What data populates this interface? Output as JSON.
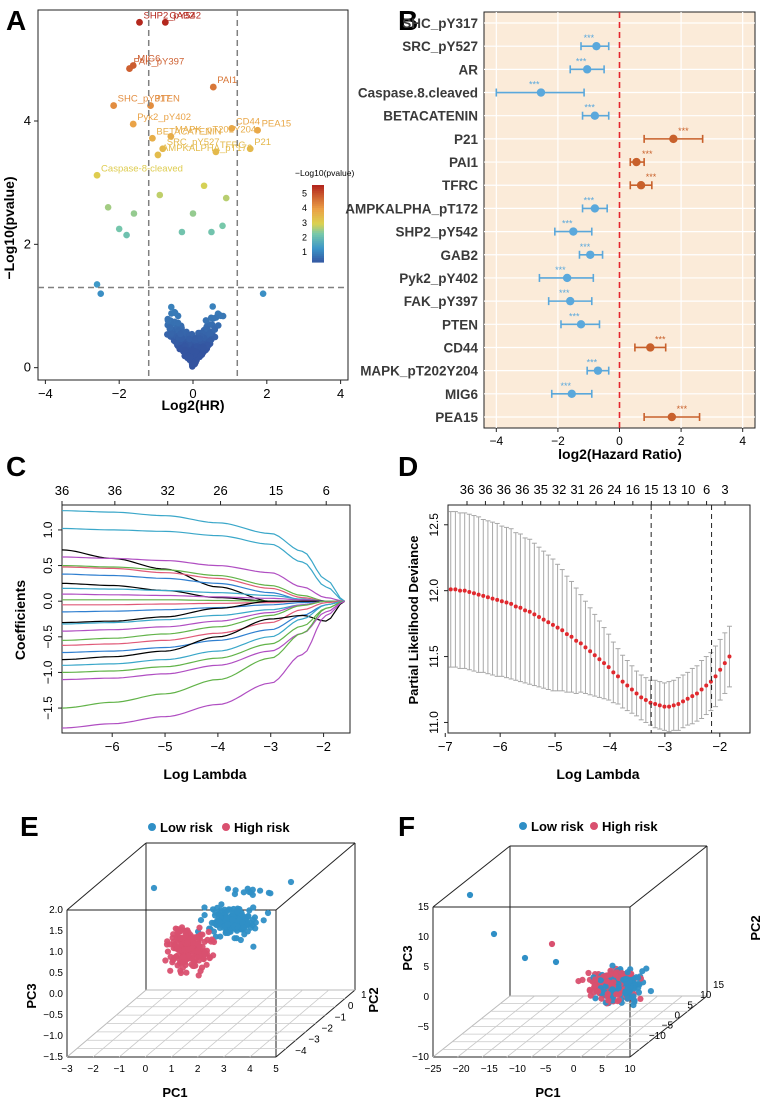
{
  "colors": {
    "forest_bg": "#fbebd9",
    "protective": "#5aa8dc",
    "risk": "#c8602b",
    "ref_line": "#e3262d",
    "low_risk": "#2f8fc6",
    "high_risk": "#d9506f",
    "lambda_point": "#e0292e",
    "err_bar": "#a8a8a8"
  },
  "chart_data": [
    {
      "panel": "A",
      "type": "scatter",
      "xlabel": "Log2(HR)",
      "ylabel": "−Log10(pvalue)",
      "xlim": [
        -4.2,
        4.2
      ],
      "ylim": [
        -0.2,
        5.8
      ],
      "xticks": [
        "−4",
        "−2",
        "0",
        "2",
        "4"
      ],
      "yticks": [
        "0",
        "2",
        "4"
      ],
      "hr_cutoffs": [
        -1.2,
        1.2
      ],
      "p_cutoff": 1.3,
      "colorbar": {
        "title": "−Log10(pvalue)",
        "ticks": [
          "5",
          "4",
          "3",
          "2",
          "1"
        ],
        "range": [
          0.3,
          5.6
        ]
      },
      "labeled": [
        {
          "label": "SHP2_pY542",
          "x": -1.45,
          "y": 5.6
        },
        {
          "label": "GAB2",
          "x": -0.75,
          "y": 5.6
        },
        {
          "label": "FAK_pY397",
          "x": -1.72,
          "y": 4.85
        },
        {
          "label": "MIG6",
          "x": -1.62,
          "y": 4.9
        },
        {
          "label": "PAI1",
          "x": 0.55,
          "y": 4.55
        },
        {
          "label": "SHC_pY317",
          "x": -2.15,
          "y": 4.25
        },
        {
          "label": "PTEN",
          "x": -1.15,
          "y": 4.25
        },
        {
          "label": "Pyk2_pY402",
          "x": -1.62,
          "y": 3.95
        },
        {
          "label": "MAPK_pT202Y204",
          "x": -0.6,
          "y": 3.75
        },
        {
          "label": "CD44",
          "x": 1.05,
          "y": 3.88
        },
        {
          "label": "PEA15",
          "x": 1.75,
          "y": 3.85
        },
        {
          "label": "BETACATENIN",
          "x": -1.1,
          "y": 3.72
        },
        {
          "label": "P21",
          "x": 1.55,
          "y": 3.55
        },
        {
          "label": "TFRC",
          "x": 0.62,
          "y": 3.5
        },
        {
          "label": "SRC_pY527",
          "x": -0.82,
          "y": 3.55
        },
        {
          "label": "AMPKALPHA_pT172",
          "x": -0.95,
          "y": 3.45
        },
        {
          "label": "Caspase-8-cleaved",
          "x": -2.6,
          "y": 3.12
        }
      ]
    },
    {
      "panel": "B",
      "type": "forest",
      "xlabel": "log2(Hazard Ratio)",
      "xlim": [
        -4.4,
        4.4
      ],
      "xticks": [
        "−4",
        "−2",
        "0",
        "2",
        "4"
      ],
      "rows": [
        {
          "name": "SHC_pY317",
          "est": null,
          "lo": null,
          "hi": null,
          "sig": ""
        },
        {
          "name": "SRC_pY527",
          "est": -0.75,
          "lo": -1.25,
          "hi": -0.35,
          "sig": "***"
        },
        {
          "name": "AR",
          "est": -1.05,
          "lo": -1.6,
          "hi": -0.5,
          "sig": "***"
        },
        {
          "name": "Caspase.8.cleaved",
          "est": -2.55,
          "lo": -4.0,
          "hi": -1.15,
          "sig": "***"
        },
        {
          "name": "BETACATENIN",
          "est": -0.8,
          "lo": -1.2,
          "hi": -0.35,
          "sig": "***"
        },
        {
          "name": "P21",
          "est": 1.75,
          "lo": 0.8,
          "hi": 2.7,
          "sig": "***"
        },
        {
          "name": "PAI1",
          "est": 0.55,
          "lo": 0.35,
          "hi": 0.8,
          "sig": "***"
        },
        {
          "name": "TFRC",
          "est": 0.7,
          "lo": 0.35,
          "hi": 1.05,
          "sig": "***"
        },
        {
          "name": "AMPKALPHA_pT172",
          "est": -0.8,
          "lo": -1.2,
          "hi": -0.4,
          "sig": "***"
        },
        {
          "name": "SHP2_pY542",
          "est": -1.5,
          "lo": -2.1,
          "hi": -0.9,
          "sig": "***"
        },
        {
          "name": "GAB2",
          "est": -0.95,
          "lo": -1.3,
          "hi": -0.55,
          "sig": "***"
        },
        {
          "name": "Pyk2_pY402",
          "est": -1.7,
          "lo": -2.6,
          "hi": -0.85,
          "sig": "***"
        },
        {
          "name": "FAK_pY397",
          "est": -1.6,
          "lo": -2.3,
          "hi": -0.9,
          "sig": "***"
        },
        {
          "name": "PTEN",
          "est": -1.25,
          "lo": -1.9,
          "hi": -0.65,
          "sig": "***"
        },
        {
          "name": "CD44",
          "est": 1.0,
          "lo": 0.5,
          "hi": 1.5,
          "sig": "***"
        },
        {
          "name": "MAPK_pT202Y204",
          "est": -0.7,
          "lo": -1.05,
          "hi": -0.35,
          "sig": "***"
        },
        {
          "name": "MIG6",
          "est": -1.55,
          "lo": -2.2,
          "hi": -0.9,
          "sig": "***"
        },
        {
          "name": "PEA15",
          "est": 1.7,
          "lo": 0.8,
          "hi": 2.6,
          "sig": "***"
        }
      ]
    },
    {
      "panel": "C",
      "type": "line",
      "xlabel": "Log Lambda",
      "ylabel": "Coefficients",
      "xlim": [
        -6.95,
        -1.5
      ],
      "ylim": [
        -1.85,
        1.35
      ],
      "xticks": [
        "−7",
        "−6",
        "−5",
        "−4",
        "−3",
        "−2"
      ],
      "yticks": [
        "−1.5",
        "−1.0",
        "−0.5",
        "0.0",
        "0.5",
        "1.0"
      ],
      "top_axis": [
        {
          "at": -6.95,
          "label": "36"
        },
        {
          "at": -5.95,
          "label": "36"
        },
        {
          "at": -4.95,
          "label": "32"
        },
        {
          "at": -3.95,
          "label": "26"
        },
        {
          "at": -2.9,
          "label": "15"
        },
        {
          "at": -1.95,
          "label": "6"
        }
      ],
      "series": [
        {
          "color": "#3aa7c9",
          "values": [
            1.27,
            1.25,
            1.2,
            1.1,
            0.95,
            0.7,
            0.3,
            0.0
          ]
        },
        {
          "color": "#3aa7c9",
          "values": [
            1.02,
            1.0,
            0.98,
            0.92,
            0.8,
            0.55,
            0.2,
            0.0
          ]
        },
        {
          "color": "#000000",
          "values": [
            0.72,
            0.6,
            0.45,
            0.2,
            0.0,
            0.0,
            0.0,
            0.0
          ]
        },
        {
          "color": "#b04ec2",
          "values": [
            0.62,
            0.6,
            0.57,
            0.5,
            0.4,
            0.2,
            0.05,
            0.0
          ]
        },
        {
          "color": "#62b349",
          "values": [
            0.5,
            0.48,
            0.44,
            0.36,
            0.22,
            0.08,
            0.0,
            0.0
          ]
        },
        {
          "color": "#e05a78",
          "values": [
            0.48,
            0.46,
            0.4,
            0.32,
            0.18,
            0.05,
            0.0,
            0.0
          ]
        },
        {
          "color": "#2f7fd0",
          "values": [
            0.38,
            0.36,
            0.32,
            0.25,
            0.12,
            0.02,
            0.0,
            0.0
          ]
        },
        {
          "color": "#000000",
          "values": [
            0.25,
            0.22,
            0.15,
            0.05,
            0.0,
            0.0,
            0.0,
            0.0
          ]
        },
        {
          "color": "#3aa7c9",
          "values": [
            0.18,
            0.17,
            0.15,
            0.12,
            0.08,
            0.03,
            0.0,
            0.0
          ]
        },
        {
          "color": "#b04ec2",
          "values": [
            0.1,
            0.09,
            0.08,
            0.06,
            0.04,
            0.02,
            0.0,
            0.0
          ]
        },
        {
          "color": "#62b349",
          "values": [
            0.02,
            0.02,
            0.02,
            0.01,
            0.0,
            0.0,
            0.0,
            0.0
          ]
        },
        {
          "color": "#e05a78",
          "values": [
            -0.05,
            -0.05,
            -0.04,
            -0.03,
            -0.02,
            0.0,
            0.0,
            0.0
          ]
        },
        {
          "color": "#2f7fd0",
          "values": [
            -0.15,
            -0.14,
            -0.12,
            -0.09,
            -0.05,
            -0.02,
            0.0,
            0.0
          ]
        },
        {
          "color": "#000000",
          "values": [
            -0.3,
            -0.28,
            -0.22,
            -0.1,
            0.0,
            0.0,
            0.0,
            0.0
          ]
        },
        {
          "color": "#3aa7c9",
          "values": [
            -0.32,
            -0.3,
            -0.26,
            -0.2,
            -0.12,
            -0.05,
            0.0,
            0.0
          ]
        },
        {
          "color": "#b04ec2",
          "values": [
            -0.42,
            -0.4,
            -0.36,
            -0.28,
            -0.16,
            -0.05,
            0.0,
            0.0
          ]
        },
        {
          "color": "#62b349",
          "values": [
            -0.55,
            -0.52,
            -0.46,
            -0.36,
            -0.2,
            -0.06,
            0.0,
            0.0
          ]
        },
        {
          "color": "#e05a78",
          "values": [
            -0.62,
            -0.6,
            -0.55,
            -0.45,
            -0.3,
            -0.12,
            -0.02,
            0.0
          ]
        },
        {
          "color": "#2f7fd0",
          "values": [
            -0.72,
            -0.7,
            -0.65,
            -0.55,
            -0.4,
            -0.2,
            -0.05,
            0.0
          ]
        },
        {
          "color": "#000000",
          "values": [
            -0.82,
            -0.78,
            -0.7,
            -0.5,
            -0.25,
            -0.2,
            -0.28,
            0.0
          ]
        },
        {
          "color": "#3aa7c9",
          "values": [
            -0.9,
            -0.88,
            -0.82,
            -0.7,
            -0.5,
            -0.25,
            -0.05,
            0.0
          ]
        },
        {
          "color": "#62b349",
          "values": [
            -1.0,
            -0.98,
            -0.92,
            -0.8,
            -0.6,
            -0.35,
            -0.1,
            0.0
          ]
        },
        {
          "color": "#b04ec2",
          "values": [
            -1.1,
            -1.08,
            -1.02,
            -0.9,
            -0.7,
            -0.45,
            -0.15,
            0.0
          ]
        },
        {
          "color": "#62b349",
          "values": [
            -1.5,
            -1.42,
            -1.3,
            -1.1,
            -0.8,
            -0.45,
            -0.1,
            0.0
          ]
        },
        {
          "color": "#b04ec2",
          "values": [
            -1.78,
            -1.72,
            -1.62,
            -1.45,
            -1.15,
            -0.75,
            -0.2,
            0.0
          ]
        }
      ]
    },
    {
      "panel": "D",
      "type": "scatter",
      "xlabel": "Log Lambda",
      "ylabel": "Partial Likelihood Deviance",
      "xlim": [
        -6.95,
        -1.45
      ],
      "ylim": [
        10.92,
        12.65
      ],
      "xticks": [
        "−7",
        "−6",
        "−5",
        "−4",
        "−3",
        "−2"
      ],
      "yticks": [
        "11.0",
        "11.5",
        "12.0",
        "12.5"
      ],
      "top_axis": [
        "36",
        "36",
        "36",
        "36",
        "35",
        "32",
        "31",
        "26",
        "24",
        "16",
        "15",
        "13",
        "10",
        "6",
        "3"
      ],
      "vlines": [
        -3.25,
        -2.15
      ],
      "x_start": -6.9,
      "x_step": 0.0846,
      "deviance": [
        12.01,
        12.01,
        12.0,
        12.0,
        11.99,
        11.98,
        11.97,
        11.96,
        11.95,
        11.94,
        11.93,
        11.92,
        11.91,
        11.9,
        11.88,
        11.87,
        11.85,
        11.84,
        11.82,
        11.8,
        11.78,
        11.76,
        11.74,
        11.72,
        11.7,
        11.67,
        11.65,
        11.62,
        11.6,
        11.57,
        11.54,
        11.51,
        11.48,
        11.45,
        11.42,
        11.38,
        11.35,
        11.31,
        11.28,
        11.25,
        11.22,
        11.19,
        11.17,
        11.15,
        11.14,
        11.13,
        11.12,
        11.12,
        11.13,
        11.14,
        11.16,
        11.18,
        11.2,
        11.22,
        11.25,
        11.28,
        11.31,
        11.35,
        11.4,
        11.45,
        11.5
      ],
      "error": [
        0.59,
        0.59,
        0.59,
        0.59,
        0.59,
        0.59,
        0.59,
        0.58,
        0.58,
        0.58,
        0.58,
        0.57,
        0.57,
        0.57,
        0.56,
        0.56,
        0.55,
        0.55,
        0.54,
        0.53,
        0.52,
        0.51,
        0.5,
        0.48,
        0.46,
        0.44,
        0.42,
        0.4,
        0.37,
        0.35,
        0.33,
        0.31,
        0.29,
        0.27,
        0.25,
        0.23,
        0.21,
        0.2,
        0.19,
        0.18,
        0.17,
        0.17,
        0.17,
        0.17,
        0.18,
        0.18,
        0.18,
        0.19,
        0.19,
        0.2,
        0.2,
        0.2,
        0.21,
        0.21,
        0.22,
        0.22,
        0.22,
        0.23,
        0.23,
        0.23,
        0.23
      ]
    },
    {
      "panel": "E",
      "type": "scatter",
      "legend": [
        "Low risk",
        "High risk"
      ],
      "xlabel": "PC1",
      "ylabel": "PC3",
      "zlabel": "PC2",
      "xticks": [
        "−3",
        "−2",
        "−1",
        "0",
        "1",
        "2",
        "3",
        "4",
        "5"
      ],
      "yticks": [
        "−1.5",
        "−1.0",
        "−0.5",
        "0.0",
        "0.5",
        "1.0",
        "1.5",
        "2.0"
      ],
      "zticks": [
        "1",
        "0",
        "−1",
        "−2",
        "−3",
        "−4"
      ],
      "clusters": {
        "low": {
          "pc1": 1.8,
          "pc3": 1.0,
          "spread": 1.0
        },
        "high": {
          "pc1": 0.9,
          "pc3": 0.6,
          "spread": 0.8
        }
      }
    },
    {
      "panel": "F",
      "type": "scatter",
      "legend": [
        "Low risk",
        "High risk"
      ],
      "xlabel": "PC1",
      "ylabel": "PC3",
      "zlabel": "PC2",
      "xticks": [
        "−25",
        "−20",
        "−15",
        "−10",
        "−5",
        "0",
        "5",
        "10"
      ],
      "yticks": [
        "−10",
        "−5",
        "0",
        "5",
        "10",
        "15"
      ],
      "zticks": [
        "15",
        "10",
        "5",
        "0",
        "−5",
        "−10"
      ],
      "outliers": [
        {
          "pc1": -19,
          "pc3": 16
        },
        {
          "pc1": -16,
          "pc3": 12
        },
        {
          "pc1": -10,
          "pc3": 8
        }
      ]
    }
  ],
  "panels": {
    "A": {
      "label": "A"
    },
    "B": {
      "label": "B"
    },
    "C": {
      "label": "C"
    },
    "D": {
      "label": "D"
    },
    "E": {
      "label": "E"
    },
    "F": {
      "label": "F"
    }
  },
  "legend": {
    "low": "Low risk",
    "high": "High risk"
  },
  "axis_titles": {
    "a_x": "Log2(HR)",
    "a_y": "−Log10(pvalue)",
    "a_cb": "−Log10(pvalue)",
    "b_x": "log2(Hazard Ratio)",
    "c_x": "Log Lambda",
    "c_y": "Coefficients",
    "d_x": "Log Lambda",
    "d_y": "Partial Likelihood Deviance",
    "e_x": "PC1",
    "e_y": "PC3",
    "e_z": "PC2",
    "f_x": "PC1",
    "f_y": "PC3",
    "f_z": "PC2"
  }
}
